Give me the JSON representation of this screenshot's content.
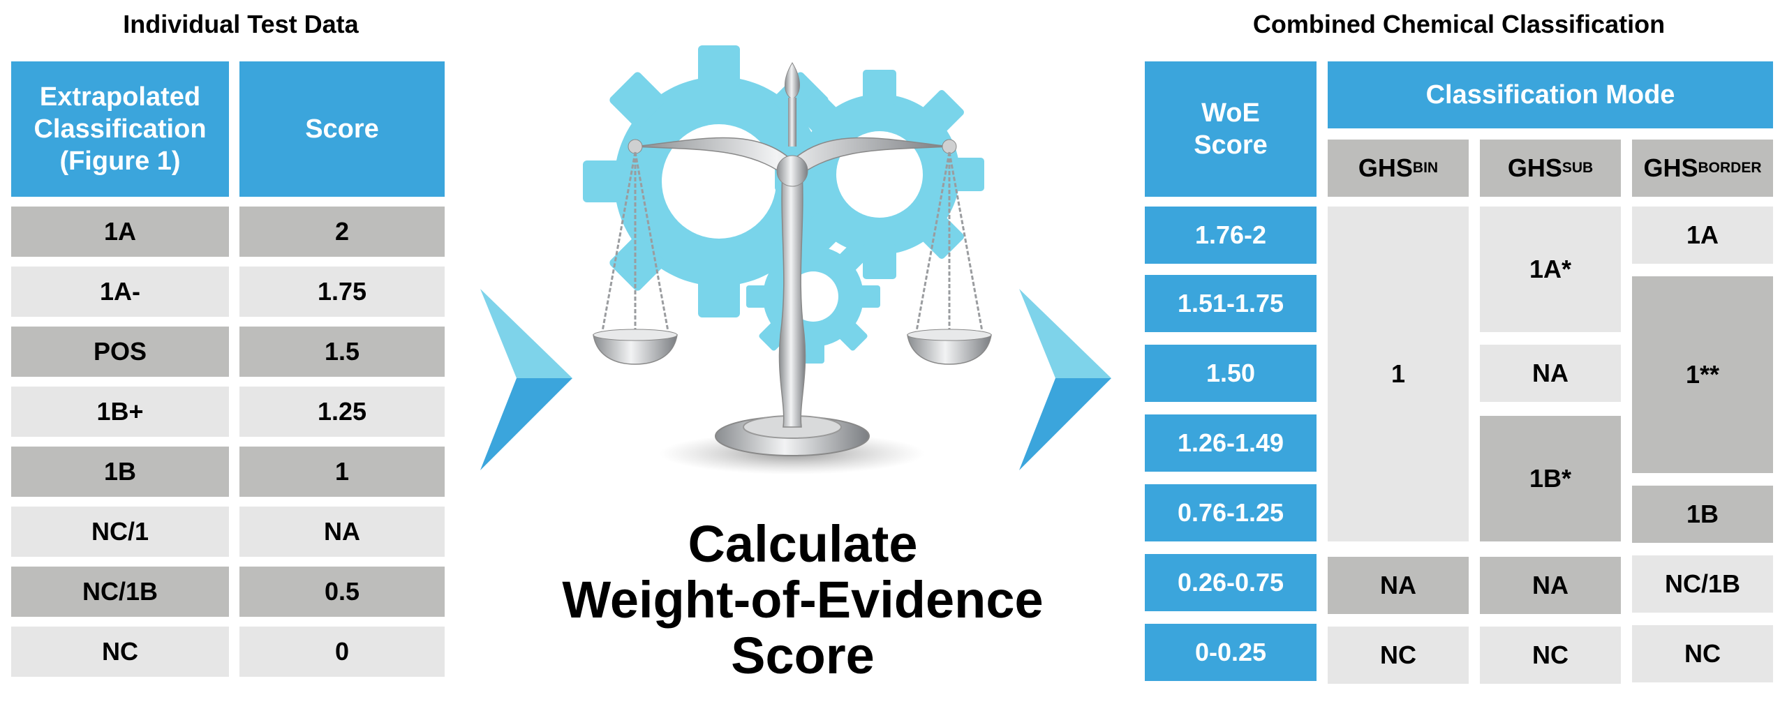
{
  "left": {
    "title": "Individual Test Data",
    "header_col1": [
      "Extrapolated",
      "Classification",
      "(Figure 1)"
    ],
    "header_col2": "Score",
    "rows": [
      {
        "classification": "1A",
        "score": "2"
      },
      {
        "classification": "1A-",
        "score": "1.75"
      },
      {
        "classification": "POS",
        "score": "1.5"
      },
      {
        "classification": "1B+",
        "score": "1.25"
      },
      {
        "classification": "1B",
        "score": "1"
      },
      {
        "classification": "NC/1",
        "score": "NA"
      },
      {
        "classification": "NC/1B",
        "score": "0.5"
      },
      {
        "classification": "NC",
        "score": "0"
      }
    ]
  },
  "center": {
    "title_lines": [
      "Calculate",
      "Weight-of-Evidence",
      "Score"
    ],
    "icons": [
      "gear-icon",
      "balance-scale-icon"
    ]
  },
  "right": {
    "title": "Combined Chemical Classification",
    "woe_header": [
      "WoE",
      "Score"
    ],
    "mode_header": "Classification Mode",
    "ghs_headers": [
      {
        "base": "GHS",
        "sub": "BIN"
      },
      {
        "base": "GHS",
        "sub": "SUB"
      },
      {
        "base": "GHS",
        "sub": "BORDER"
      }
    ],
    "woe_ranges": [
      "1.76-2",
      "1.51-1.75",
      "1.50",
      "1.26-1.49",
      "0.76-1.25",
      "0.26-0.75",
      "0-0.25"
    ],
    "bin": {
      "merged": "1",
      "na": "NA",
      "nc": "NC"
    },
    "sub": {
      "top": "1A*",
      "mid": "NA",
      "bottom": "1B*",
      "na": "NA",
      "nc": "NC"
    },
    "border": {
      "top": "1A",
      "mid": "1**",
      "bottom": "1B",
      "nc1b": "NC/1B",
      "nc": "NC"
    }
  },
  "colors": {
    "blue": "#3ba5dc",
    "light_blue": "#7ed3ea",
    "dark_gray": "#bdbdbb",
    "light_gray": "#e6e6e6"
  }
}
